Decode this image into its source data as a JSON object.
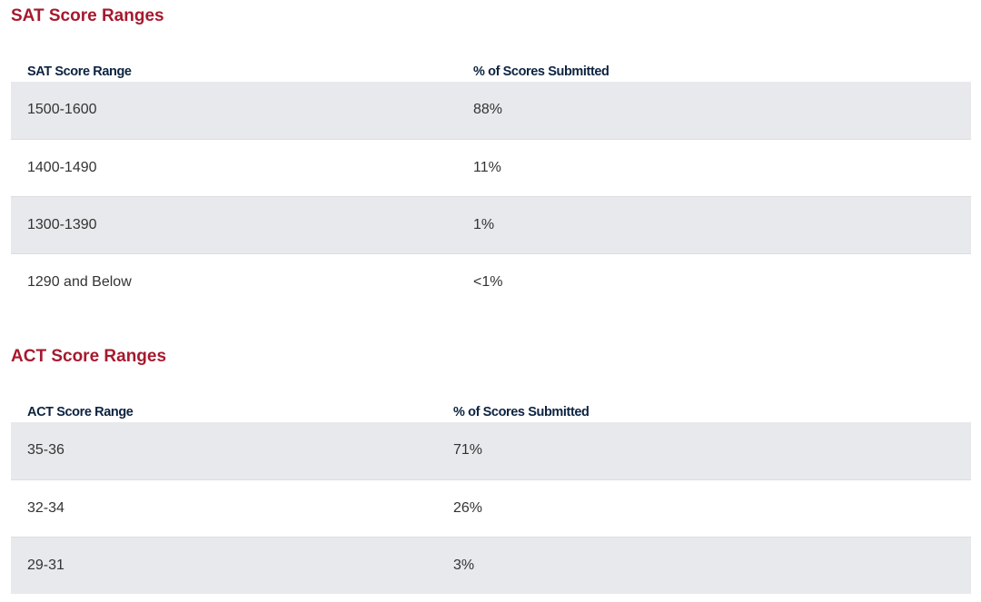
{
  "sat": {
    "title": "SAT Score Ranges",
    "headers": [
      "SAT Score Range",
      "% of Scores Submitted"
    ],
    "rows": [
      [
        "1500-1600",
        "88%"
      ],
      [
        "1400-1490",
        "11%"
      ],
      [
        "1300-1390",
        "1%"
      ],
      [
        "1290 and Below",
        "<1%"
      ]
    ]
  },
  "act": {
    "title": "ACT Score Ranges",
    "headers": [
      "ACT Score Range",
      "% of Scores Submitted"
    ],
    "rows": [
      [
        "35-36",
        "71%"
      ],
      [
        "32-34",
        "26%"
      ],
      [
        "29-31",
        "3%"
      ]
    ]
  }
}
